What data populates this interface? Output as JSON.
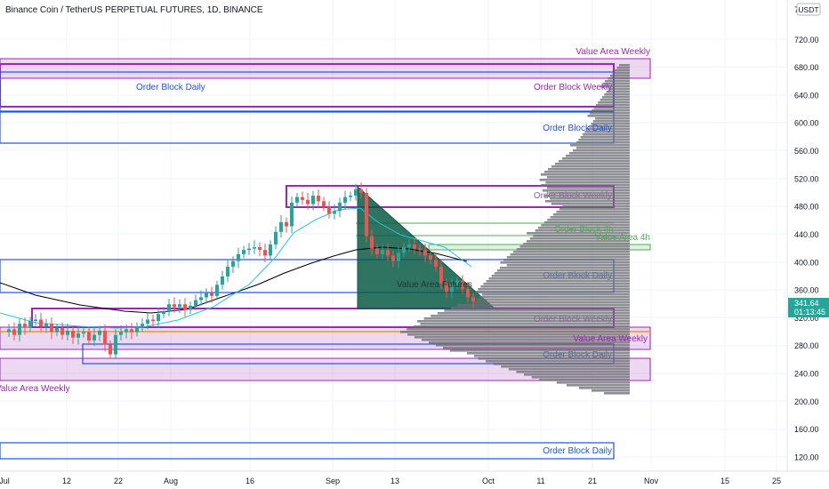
{
  "header": {
    "title": "Binance Coin / TetherUS PERPETUAL FUTURES, 1D, BINANCE"
  },
  "axis": {
    "currency_label": "USDT",
    "top_tick": "7",
    "price_ticks": [
      "720.00",
      "680.00",
      "640.00",
      "600.00",
      "560.00",
      "520.00",
      "480.00",
      "440.00",
      "400.00",
      "360.00",
      "320.00",
      "280.00",
      "240.00",
      "200.00",
      "160.00",
      "120.00"
    ],
    "last_price": "341.64",
    "countdown": "01:13:45",
    "time_ticks": [
      "Jul",
      "12",
      "22",
      "Aug",
      "16",
      "Sep",
      "13",
      "Oct",
      "11",
      "21",
      "Nov",
      "15",
      "25"
    ]
  },
  "annotations": {
    "value_area_weekly": "Value Area Weekly",
    "order_block_daily": "Order Block Daily",
    "order_block_weekly": "Order Block Weekly",
    "order_block_4h": "Order Block 4h",
    "value_area_4h": "Value Area 4h",
    "value_area_futures": "Value Area Futures"
  },
  "colors": {
    "bull": "#26a69a",
    "bear": "#ef5350",
    "weekly": "#9c27b0",
    "daily": "#1e53e5",
    "fourh": "#4caf50",
    "poc": "#ff9800",
    "wedge": "#0b5a45"
  },
  "chart_data": {
    "type": "candlestick",
    "title": "Binance Coin / TetherUS PERPETUAL FUTURES, 1D, BINANCE",
    "ylabel": "USDT",
    "ylim": [
      100,
      740
    ],
    "last_price": 341.64,
    "series_close": [
      {
        "date": "Jul 1",
        "close": 300
      },
      {
        "date": "Jul 5",
        "close": 304
      },
      {
        "date": "Jul 10",
        "close": 314
      },
      {
        "date": "Jul 15",
        "close": 306
      },
      {
        "date": "Jul 20",
        "close": 265
      },
      {
        "date": "Jul 25",
        "close": 300
      },
      {
        "date": "Jul 30",
        "close": 328
      },
      {
        "date": "Aug 5",
        "close": 332
      },
      {
        "date": "Aug 10",
        "close": 368
      },
      {
        "date": "Aug 15",
        "close": 395
      },
      {
        "date": "Aug 20",
        "close": 440
      },
      {
        "date": "Aug 25",
        "close": 485
      },
      {
        "date": "Aug 30",
        "close": 482
      },
      {
        "date": "Sep 5",
        "close": 505
      },
      {
        "date": "Sep 8",
        "close": 425
      },
      {
        "date": "Sep 13",
        "close": 412
      },
      {
        "date": "Sep 18",
        "close": 420
      },
      {
        "date": "Sep 22",
        "close": 360
      },
      {
        "date": "Sep 26",
        "close": 341.64
      }
    ]
  }
}
